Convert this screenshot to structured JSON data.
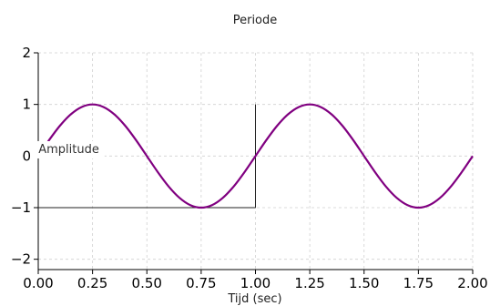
{
  "chart_data": {
    "type": "line",
    "title": "Periode",
    "xlabel": "Tijd (sec)",
    "ylabel": "",
    "xlim": [
      0,
      2
    ],
    "ylim": [
      -2.2,
      2
    ],
    "grid": true,
    "x_ticks": [
      0.0,
      0.25,
      0.5,
      0.75,
      1.0,
      1.25,
      1.5,
      1.75,
      2.0
    ],
    "x_tick_labels": [
      "0.00",
      "0.25",
      "0.50",
      "0.75",
      "1.00",
      "1.25",
      "1.50",
      "1.75",
      "2.00"
    ],
    "y_ticks": [
      -2,
      -1,
      0,
      1,
      2
    ],
    "y_tick_labels": [
      "−2",
      "−1",
      "0",
      "1",
      "2"
    ],
    "series": [
      {
        "color": "#800080",
        "x": [
          0,
          0.05,
          0.1,
          0.15,
          0.2,
          0.25,
          0.3,
          0.35,
          0.4,
          0.45,
          0.5,
          0.55,
          0.6,
          0.65,
          0.7,
          0.75,
          0.8,
          0.85,
          0.9,
          0.95,
          1.0,
          1.05,
          1.1,
          1.15,
          1.2,
          1.25,
          1.3,
          1.35,
          1.4,
          1.45,
          1.5,
          1.55,
          1.6,
          1.65,
          1.7,
          1.75,
          1.8,
          1.85,
          1.9,
          1.95,
          2.0
        ],
        "values": [
          0,
          0.309,
          0.588,
          0.809,
          0.951,
          1,
          0.951,
          0.809,
          0.588,
          0.309,
          0,
          -0.309,
          -0.588,
          -0.809,
          -0.951,
          -1,
          -0.951,
          -0.809,
          -0.588,
          -0.309,
          0,
          0.309,
          0.588,
          0.809,
          0.951,
          1,
          0.951,
          0.809,
          0.588,
          0.309,
          0,
          -0.309,
          -0.588,
          -0.809,
          -0.951,
          -1,
          -0.951,
          -0.809,
          -0.588,
          -0.309,
          0
        ]
      }
    ],
    "annotations": [
      {
        "text": "Amplitude",
        "x": 0.5,
        "y": 0.13
      }
    ],
    "guides": [
      {
        "from": [
          0,
          -1
        ],
        "to": [
          1.0,
          -1
        ]
      },
      {
        "from": [
          1.0,
          -1
        ],
        "to": [
          1.0,
          1
        ]
      }
    ]
  }
}
